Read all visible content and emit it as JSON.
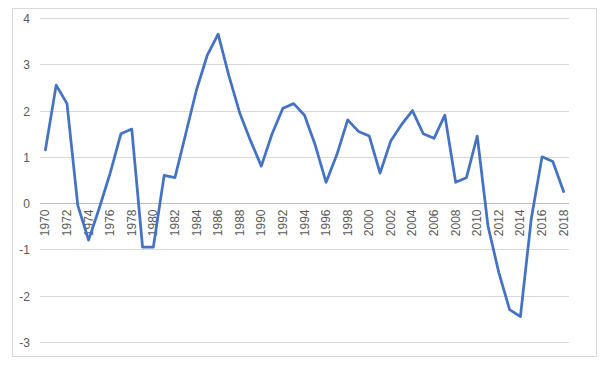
{
  "chart_data": {
    "type": "line",
    "categories": [
      "1970",
      null,
      "1972",
      null,
      "1974",
      null,
      "1976",
      null,
      "1978",
      null,
      "1980",
      null,
      "1982",
      null,
      "1984",
      null,
      "1986",
      null,
      "1988",
      null,
      "1990",
      null,
      "1992",
      null,
      "1994",
      null,
      "1996",
      null,
      "1998",
      null,
      "2000",
      null,
      "2002",
      null,
      "2004",
      null,
      "2006",
      null,
      "2008",
      null,
      "2010",
      null,
      "2012",
      null,
      "2014",
      null,
      "2016",
      null,
      "2018"
    ],
    "values": [
      1.15,
      2.55,
      2.15,
      -0.05,
      -0.8,
      -0.1,
      0.65,
      1.5,
      1.6,
      -0.95,
      -0.95,
      0.6,
      0.55,
      1.5,
      2.45,
      3.2,
      3.65,
      2.75,
      1.95,
      1.35,
      0.8,
      1.5,
      2.05,
      2.15,
      1.9,
      1.25,
      0.45,
      1.05,
      1.8,
      1.55,
      1.45,
      0.65,
      1.35,
      1.7,
      2.0,
      1.5,
      1.4,
      1.9,
      0.45,
      0.55,
      1.45,
      -0.5,
      -1.5,
      -2.3,
      -2.45,
      -0.35,
      1.0,
      0.9,
      0.25
    ],
    "color": "#4472c4",
    "ylim": [
      -3,
      4
    ],
    "yticks": [
      -3,
      -2,
      -1,
      0,
      1,
      2,
      3,
      4
    ],
    "grid": true
  }
}
